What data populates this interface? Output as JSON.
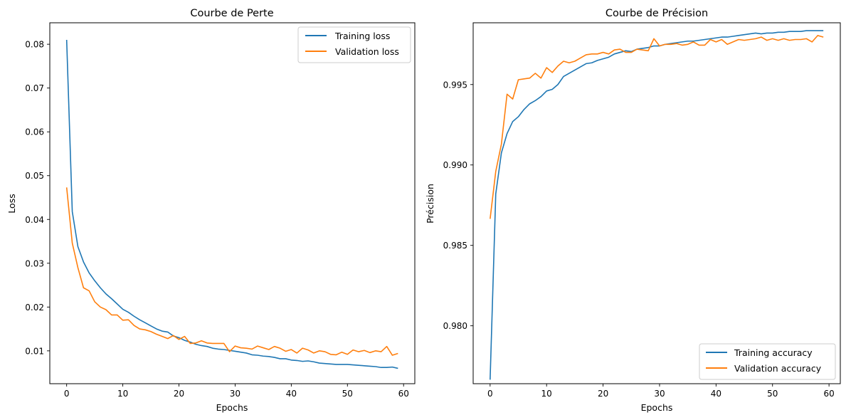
{
  "colors": {
    "series1": "#1f77b4",
    "series2": "#ff7f0e",
    "axis": "#000000",
    "legend_border": "#cccccc"
  },
  "chart_data": [
    {
      "type": "line",
      "title": "Courbe de Perte",
      "xlabel": "Epochs",
      "ylabel": "Loss",
      "xlim": [
        -3,
        62
      ],
      "ylim": [
        0.0025,
        0.0849
      ],
      "xticks": [
        0,
        10,
        20,
        30,
        40,
        50,
        60
      ],
      "yticks": [
        0.01,
        0.02,
        0.03,
        0.04,
        0.05,
        0.06,
        0.07,
        0.08
      ],
      "ytick_labels": [
        "0.01",
        "0.02",
        "0.03",
        "0.04",
        "0.05",
        "0.06",
        "0.07",
        "0.08"
      ],
      "legend_position": "upper-right",
      "grid": false,
      "series": [
        {
          "name": "Training loss",
          "color": "#1f77b4",
          "values": [
            0.081,
            0.0418,
            0.0338,
            0.0303,
            0.0278,
            0.026,
            0.0244,
            0.023,
            0.0219,
            0.0207,
            0.0195,
            0.0188,
            0.0179,
            0.0171,
            0.0164,
            0.0157,
            0.015,
            0.0145,
            0.0143,
            0.0134,
            0.013,
            0.0124,
            0.012,
            0.0115,
            0.0112,
            0.011,
            0.0106,
            0.0104,
            0.0103,
            0.0101,
            0.0099,
            0.0097,
            0.0095,
            0.0091,
            0.009,
            0.0088,
            0.0087,
            0.0085,
            0.0082,
            0.0082,
            0.0079,
            0.0078,
            0.0076,
            0.0077,
            0.0075,
            0.0072,
            0.0071,
            0.007,
            0.0069,
            0.0069,
            0.0069,
            0.0068,
            0.0067,
            0.0066,
            0.0065,
            0.0064,
            0.0062,
            0.0062,
            0.0063,
            0.006
          ]
        },
        {
          "name": "Validation loss",
          "color": "#ff7f0e",
          "values": [
            0.0473,
            0.0346,
            0.029,
            0.0244,
            0.0237,
            0.0212,
            0.02,
            0.0194,
            0.0182,
            0.0182,
            0.017,
            0.0171,
            0.0158,
            0.015,
            0.0148,
            0.0144,
            0.0138,
            0.0133,
            0.0128,
            0.0135,
            0.0126,
            0.0133,
            0.0117,
            0.0118,
            0.0123,
            0.0118,
            0.0117,
            0.0117,
            0.0117,
            0.0098,
            0.0111,
            0.0107,
            0.0106,
            0.0104,
            0.0111,
            0.0107,
            0.0103,
            0.011,
            0.0106,
            0.0099,
            0.0103,
            0.0095,
            0.0106,
            0.0102,
            0.0095,
            0.01,
            0.0098,
            0.0092,
            0.0091,
            0.0097,
            0.0092,
            0.0102,
            0.0098,
            0.0101,
            0.0096,
            0.01,
            0.0098,
            0.011,
            0.009,
            0.0094
          ]
        }
      ]
    },
    {
      "type": "line",
      "title": "Courbe de Précision",
      "xlabel": "Epochs",
      "ylabel": "Précision",
      "xlim": [
        -3,
        62
      ],
      "ylim": [
        0.9764,
        0.99884
      ],
      "xticks": [
        0,
        10,
        20,
        30,
        40,
        50,
        60
      ],
      "yticks": [
        0.98,
        0.985,
        0.99,
        0.995
      ],
      "ytick_labels": [
        "0.980",
        "0.985",
        "0.990",
        "0.995"
      ],
      "legend_position": "lower-right",
      "grid": false,
      "series": [
        {
          "name": "Training accuracy",
          "color": "#1f77b4",
          "values": [
            0.97665,
            0.9882,
            0.99075,
            0.99195,
            0.9927,
            0.993,
            0.99345,
            0.9938,
            0.994,
            0.99425,
            0.9946,
            0.9947,
            0.995,
            0.9955,
            0.9957,
            0.9959,
            0.9961,
            0.9963,
            0.99635,
            0.9965,
            0.9966,
            0.9967,
            0.9969,
            0.997,
            0.9971,
            0.99705,
            0.9972,
            0.99725,
            0.9973,
            0.9974,
            0.9974,
            0.9975,
            0.99755,
            0.9976,
            0.99765,
            0.9977,
            0.9977,
            0.99775,
            0.9978,
            0.99785,
            0.9979,
            0.99795,
            0.99795,
            0.998,
            0.99805,
            0.9981,
            0.99815,
            0.9982,
            0.99815,
            0.9982,
            0.9982,
            0.99825,
            0.99825,
            0.9983,
            0.9983,
            0.9983,
            0.99835,
            0.99835,
            0.99835,
            0.99835
          ]
        },
        {
          "name": "Validation accuracy",
          "color": "#ff7f0e",
          "values": [
            0.98665,
            0.9896,
            0.9913,
            0.9944,
            0.9941,
            0.9953,
            0.99535,
            0.9954,
            0.9957,
            0.9954,
            0.99605,
            0.99575,
            0.99615,
            0.99645,
            0.99635,
            0.99645,
            0.99665,
            0.99685,
            0.9969,
            0.9969,
            0.997,
            0.9969,
            0.99715,
            0.9972,
            0.997,
            0.997,
            0.9972,
            0.99715,
            0.9971,
            0.99785,
            0.9974,
            0.9975,
            0.9975,
            0.99755,
            0.99745,
            0.9975,
            0.99765,
            0.99745,
            0.99745,
            0.9978,
            0.99765,
            0.9978,
            0.9975,
            0.99765,
            0.9978,
            0.99775,
            0.9978,
            0.99785,
            0.99795,
            0.99775,
            0.99785,
            0.99775,
            0.99785,
            0.99775,
            0.9978,
            0.9978,
            0.99785,
            0.99765,
            0.99805,
            0.99795
          ]
        }
      ]
    }
  ]
}
